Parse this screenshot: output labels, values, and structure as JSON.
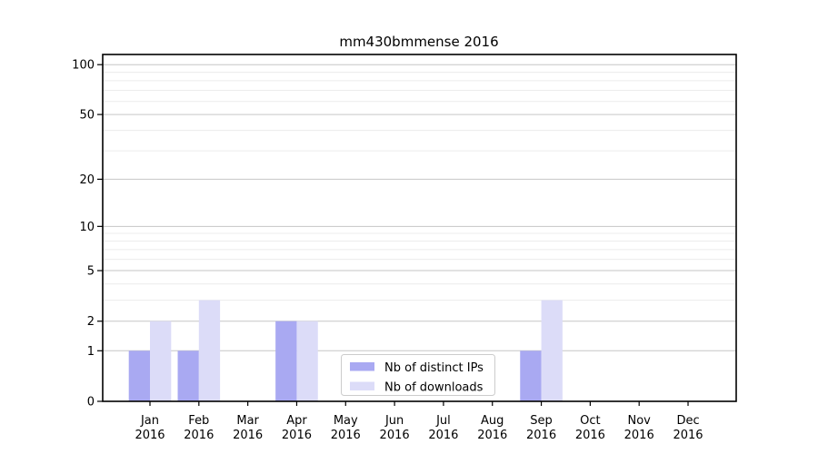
{
  "chart_data": {
    "type": "bar",
    "title": "mm430bmmense 2016",
    "categories": [
      "Jan",
      "Feb",
      "Mar",
      "Apr",
      "May",
      "Jun",
      "Jul",
      "Aug",
      "Sep",
      "Oct",
      "Nov",
      "Dec"
    ],
    "category_year_suffix": "2016",
    "series": [
      {
        "name": "Nb of distinct IPs",
        "color": "#a9a9f2",
        "values": [
          1,
          1,
          0,
          2,
          0,
          0,
          0,
          0,
          1,
          0,
          0,
          0
        ]
      },
      {
        "name": "Nb of downloads",
        "color": "#dcdcf8",
        "values": [
          2,
          3,
          0,
          2,
          0,
          0,
          0,
          0,
          3,
          0,
          0,
          0
        ]
      }
    ],
    "xlabel": "",
    "ylabel": "",
    "y_axis": {
      "scale": "log1p",
      "tick_values": [
        0,
        1,
        2,
        5,
        10,
        20,
        50,
        100
      ],
      "minor_gridline_values": [
        3,
        4,
        6,
        7,
        8,
        9,
        30,
        40,
        60,
        70,
        80,
        90
      ],
      "ylim": [
        0,
        115
      ]
    },
    "grid": "horizontal",
    "legend_position": "lower-center-inside",
    "colors": {
      "major_gridline": "#c6c6c6",
      "minor_gridline": "#ececec",
      "spine": "#000000",
      "legend_border": "#cccccc",
      "legend_background": "#ffffff"
    }
  }
}
